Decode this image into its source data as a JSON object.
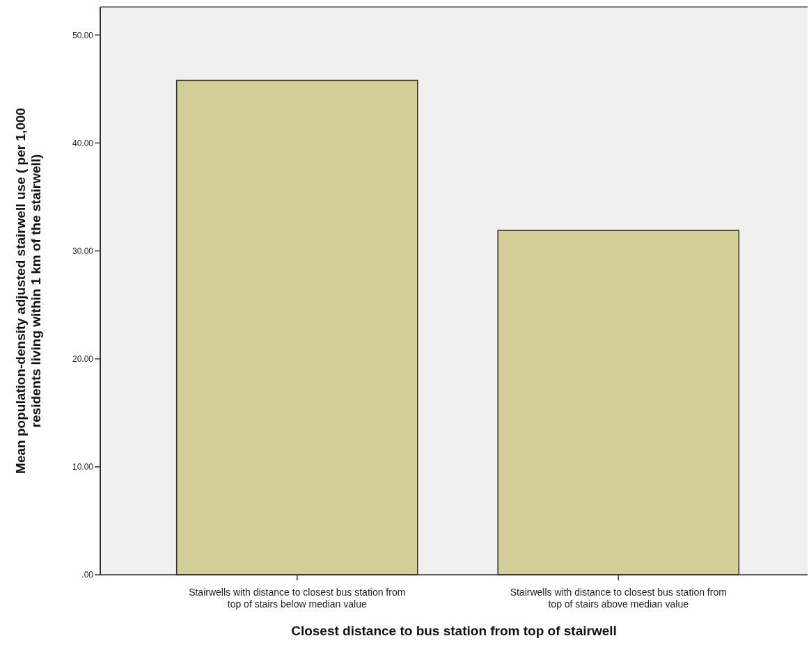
{
  "chart_data": {
    "type": "bar",
    "xlabel": "Closest distance to bus station from top of stairwell",
    "ylabel": "Mean population-density adjusted stairwell use ( per 1,000 residents living within 1 km of the stairwell)",
    "categories": [
      "Stairwells with distance to closest bus station from top of stairs below median value",
      "Stairwells with distance to closest bus station from top of stairs above  median value"
    ],
    "values": [
      45.8,
      31.9
    ],
    "color": "#d3ce97",
    "ylim": [
      0,
      52.6
    ],
    "yticks": [
      {
        "value": 0,
        "label": ".00"
      },
      {
        "value": 10,
        "label": "10.00"
      },
      {
        "value": 20,
        "label": "20.00"
      },
      {
        "value": 30,
        "label": "30.00"
      },
      {
        "value": 40,
        "label": "40.00"
      },
      {
        "value": 50,
        "label": "50.00"
      }
    ],
    "grid": false
  }
}
